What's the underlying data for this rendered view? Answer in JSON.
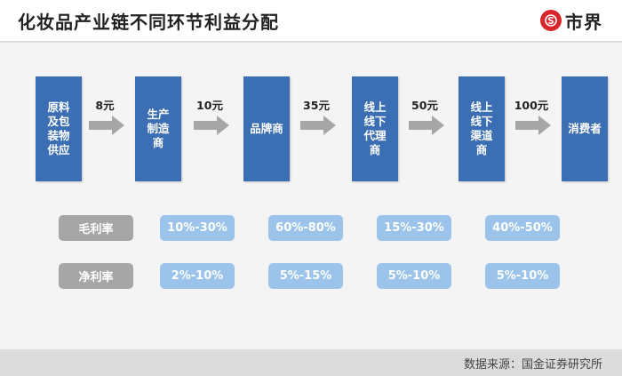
{
  "header": {
    "title": "化妆品产业链不同环节利益分配",
    "logo_text": "市界"
  },
  "chain": {
    "nodes": [
      "原料及包装物供应",
      "生产制造商",
      "品牌商",
      "线上线下代理商",
      "线上线下渠道商",
      "消费者"
    ],
    "prices": [
      "8元",
      "10元",
      "35元",
      "50元",
      "100元"
    ]
  },
  "margins": {
    "gross_label": "毛利率",
    "gross": [
      "10%-30%",
      "60%-80%",
      "15%-30%",
      "40%-50%"
    ],
    "net_label": "净利率",
    "net": [
      "2%-10%",
      "5%-15%",
      "5%-10%",
      "5%-10%"
    ]
  },
  "footer": {
    "source": "数据来源：国金证券研究所"
  },
  "colors": {
    "node": "#3c6eb4",
    "arrow": "#a6a6a6",
    "label_bg": "#a6a6a6",
    "pill": "#9cc3ea",
    "logo": "#d9252b"
  }
}
